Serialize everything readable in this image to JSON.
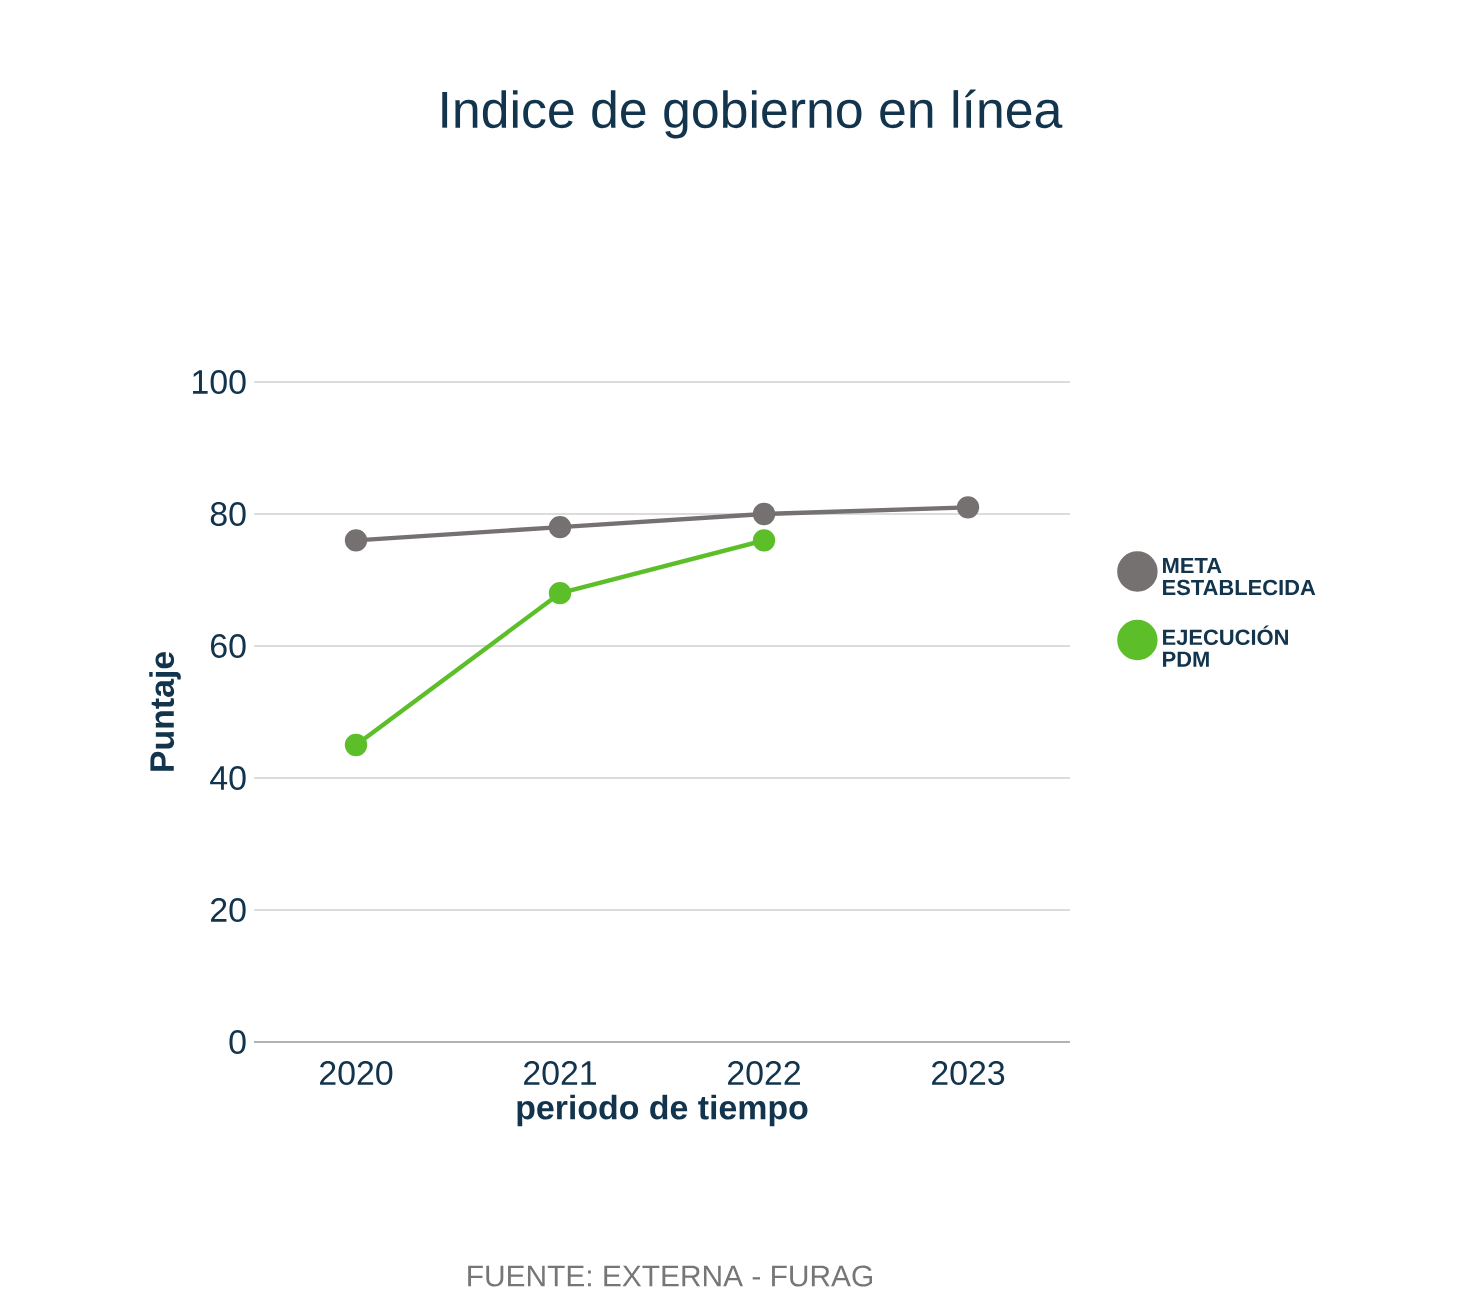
{
  "chart_data": {
    "type": "line",
    "title": "Indice de gobierno en línea",
    "xlabel": "periodo de tiempo",
    "ylabel": "Puntaje",
    "categories": [
      "2020",
      "2021",
      "2022",
      "2023"
    ],
    "series": [
      {
        "name": "META ESTABLECIDA",
        "color": "#767171",
        "values": [
          76,
          78,
          80,
          81
        ]
      },
      {
        "name": "EJECUCIÓN PDM",
        "color": "#5cbf2a",
        "values": [
          45,
          68,
          76,
          null
        ]
      }
    ],
    "ylim": [
      0,
      100
    ],
    "yticks": [
      0,
      20,
      40,
      60,
      80,
      100
    ],
    "grid": "y",
    "legend": "right",
    "marker": "circle",
    "annotations": [
      "FUENTE: EXTERNA - FURAG"
    ]
  }
}
